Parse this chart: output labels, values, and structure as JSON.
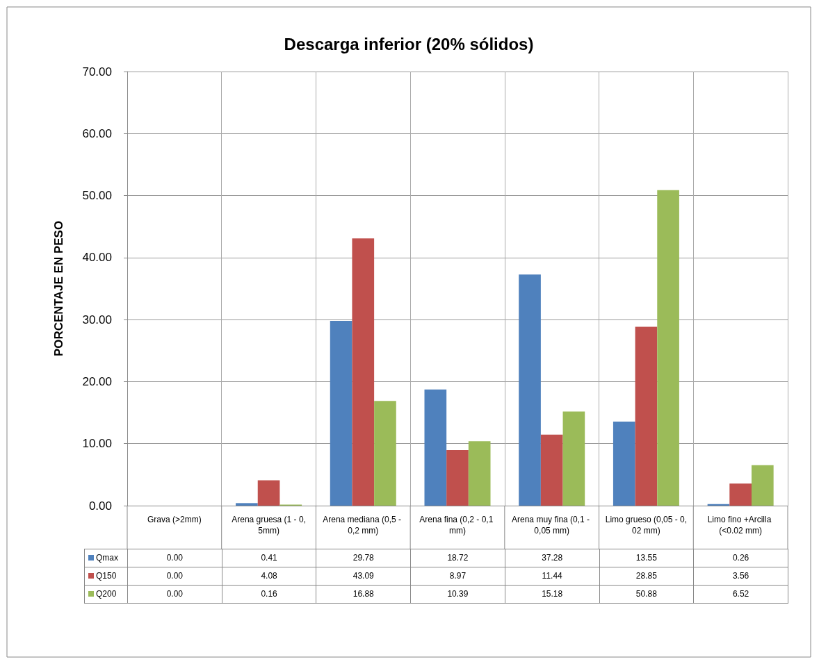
{
  "chart_data": {
    "type": "bar",
    "title": "Descarga inferior (20% sólidos)",
    "ylabel": "PORCENTAJE EN PESO",
    "categories": [
      "Grava (>2mm)",
      "Arena gruesa (1 - 0,5mm)",
      "Arena mediana (0,5 - 0,2 mm)",
      "Arena fina (0,2 - 0,1 mm)",
      "Arena muy fina (0,1 - 0,05 mm)",
      "Limo grueso (0,05 - 0,02 mm)",
      "Limo fino +Arcilla (<0.02 mm)"
    ],
    "series": [
      {
        "name": "Qmax",
        "color": "#4f81bd",
        "values": [
          0.0,
          0.41,
          29.78,
          18.72,
          37.28,
          13.55,
          0.26
        ],
        "value_labels": [
          "0.00",
          "0.41",
          "29.78",
          "18.72",
          "37.28",
          "13.55",
          "0.26"
        ]
      },
      {
        "name": "Q150",
        "color": "#c0504d",
        "values": [
          0.0,
          4.08,
          43.09,
          8.97,
          11.44,
          28.85,
          3.56
        ],
        "value_labels": [
          "0.00",
          "4.08",
          "43.09",
          "8.97",
          "11.44",
          "28.85",
          "3.56"
        ]
      },
      {
        "name": "Q200",
        "color": "#9bbb59",
        "values": [
          0.0,
          0.16,
          16.88,
          10.39,
          15.18,
          50.88,
          6.52
        ],
        "value_labels": [
          "0.00",
          "0.16",
          "16.88",
          "10.39",
          "15.18",
          "50.88",
          "6.52"
        ]
      }
    ],
    "ylim": [
      0,
      70
    ],
    "yticks": [
      {
        "value": 0,
        "label": "0.00"
      },
      {
        "value": 10,
        "label": "10.00"
      },
      {
        "value": 20,
        "label": "20.00"
      },
      {
        "value": 30,
        "label": "30.00"
      },
      {
        "value": 40,
        "label": "40.00"
      },
      {
        "value": 50,
        "label": "50.00"
      },
      {
        "value": 60,
        "label": "60.00"
      },
      {
        "value": 70,
        "label": "70.00"
      }
    ],
    "grid": true,
    "legend": "bottom"
  }
}
